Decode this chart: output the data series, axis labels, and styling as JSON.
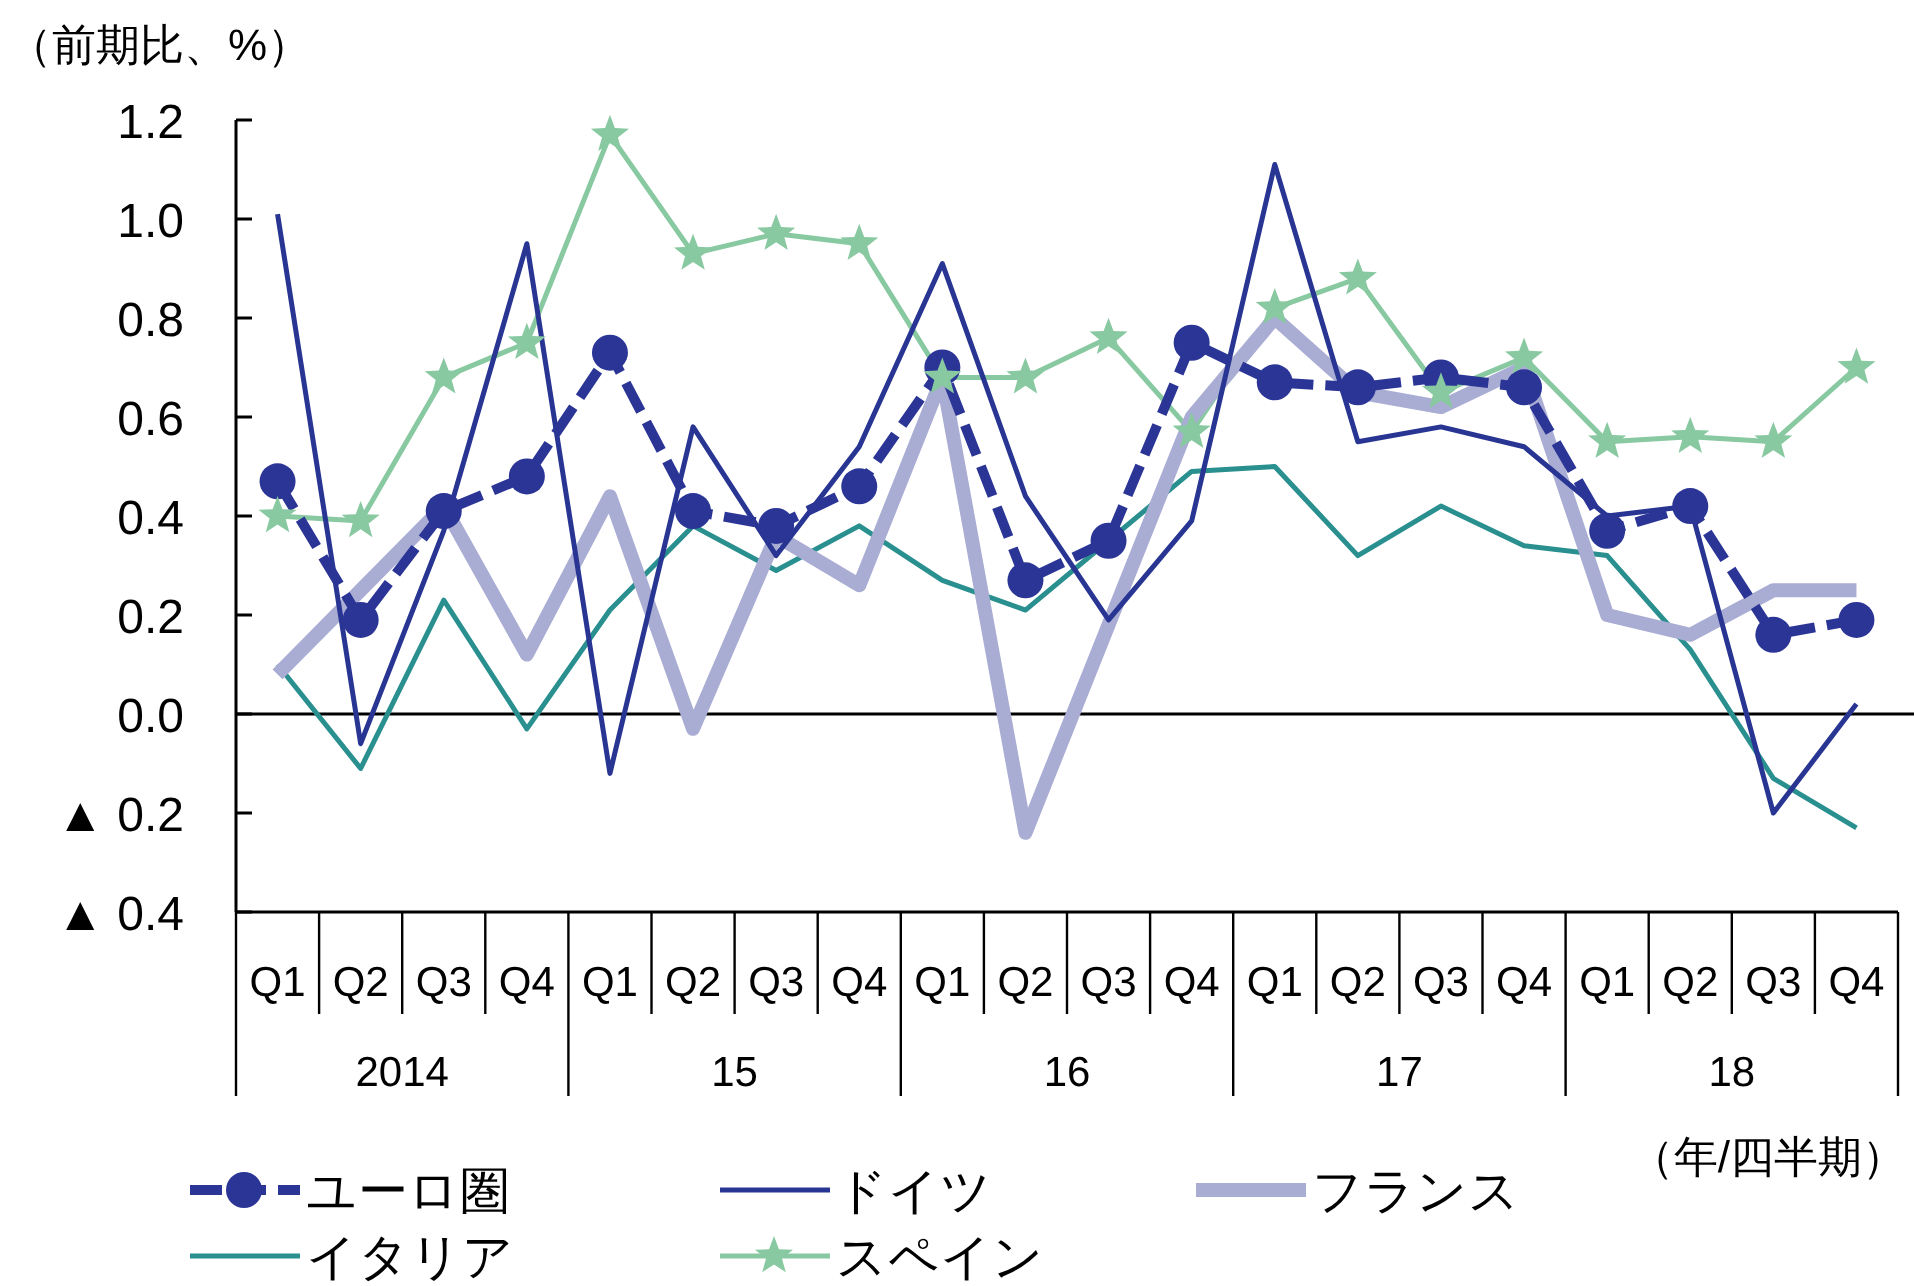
{
  "chart_data": {
    "type": "line",
    "ylabel": "（前期比、%）",
    "xlabel": "（年/四半期）",
    "categories": [
      "Q1",
      "Q2",
      "Q3",
      "Q4",
      "Q1",
      "Q2",
      "Q3",
      "Q4",
      "Q1",
      "Q2",
      "Q3",
      "Q4",
      "Q1",
      "Q2",
      "Q3",
      "Q4",
      "Q1",
      "Q2",
      "Q3",
      "Q4"
    ],
    "annotations": [
      "2014",
      "15",
      "16",
      "17",
      "18"
    ],
    "ylim": [
      -0.4,
      1.2
    ],
    "yticks": [
      {
        "value": -0.4,
        "label": "▲ 0.4"
      },
      {
        "value": -0.2,
        "label": "▲ 0.2"
      },
      {
        "value": 0,
        "label": "0.0"
      },
      {
        "value": 0.2,
        "label": "0.2"
      },
      {
        "value": 0.4,
        "label": "0.4"
      },
      {
        "value": 0.6,
        "label": "0.6"
      },
      {
        "value": 0.8,
        "label": "0.8"
      },
      {
        "value": 1.0,
        "label": "1.0"
      },
      {
        "value": 1.2,
        "label": "1.2"
      }
    ],
    "ref_lines": [
      {
        "axis": "y",
        "value": 0,
        "label": null,
        "color": "#000000"
      }
    ],
    "grid": false,
    "legend": "bottom",
    "series": [
      {
        "name": "ユーロ圏",
        "color": "#2b3596",
        "marker": "circle",
        "line_style": "dashed",
        "values": [
          0.47,
          0.19,
          0.41,
          0.48,
          0.73,
          0.41,
          0.38,
          0.46,
          0.7,
          0.27,
          0.35,
          0.75,
          0.67,
          0.66,
          0.68,
          0.66,
          0.37,
          0.42,
          0.16,
          0.19
        ]
      },
      {
        "name": "ドイツ",
        "color": "#283593",
        "marker": "none",
        "line_style": "solid",
        "values": [
          1.01,
          -0.06,
          0.37,
          0.95,
          -0.12,
          0.58,
          0.32,
          0.54,
          0.91,
          0.44,
          0.19,
          0.39,
          1.11,
          0.55,
          0.58,
          0.54,
          0.4,
          0.42,
          -0.2,
          0.02
        ]
      },
      {
        "name": "フランス",
        "color": "#a9acd3",
        "marker": "none",
        "line_style": "solid",
        "values": [
          0.08,
          0.25,
          0.42,
          0.12,
          0.44,
          -0.03,
          0.36,
          0.26,
          0.68,
          -0.24,
          0.18,
          0.6,
          0.8,
          0.65,
          0.62,
          0.7,
          0.2,
          0.16,
          0.25,
          0.25
        ]
      },
      {
        "name": "イタリア",
        "color": "#2a8f8f",
        "marker": "none",
        "line_style": "solid",
        "values": [
          0.1,
          -0.11,
          0.23,
          -0.03,
          0.21,
          0.38,
          0.29,
          0.38,
          0.27,
          0.21,
          0.35,
          0.49,
          0.5,
          0.32,
          0.42,
          0.34,
          0.32,
          0.13,
          -0.13,
          -0.23
        ]
      },
      {
        "name": "スペイン",
        "color": "#88c9a1",
        "marker": "star",
        "line_style": "solid",
        "values": [
          0.4,
          0.39,
          0.68,
          0.75,
          1.17,
          0.93,
          0.97,
          0.95,
          0.68,
          0.68,
          0.76,
          0.57,
          0.82,
          0.88,
          0.65,
          0.72,
          0.55,
          0.56,
          0.55,
          0.7
        ]
      }
    ]
  }
}
